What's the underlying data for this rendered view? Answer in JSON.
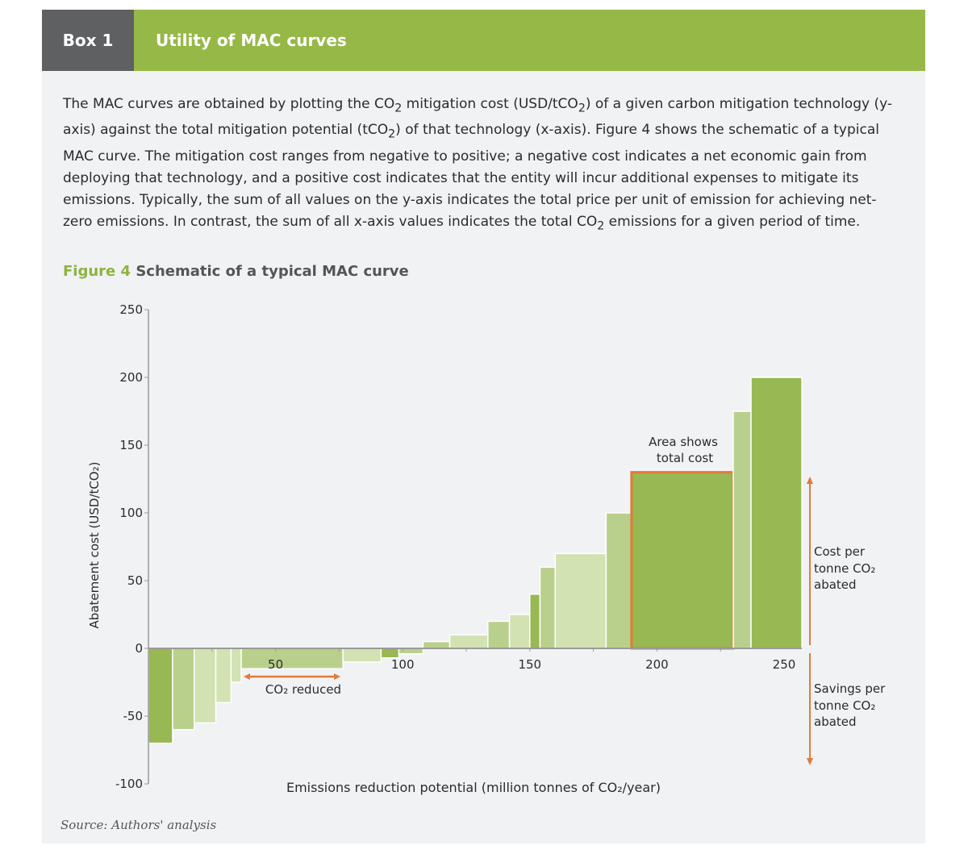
{
  "header": {
    "box_label": "Box 1",
    "title": "Utility of MAC curves"
  },
  "intro": {
    "parts": [
      "The MAC curves are obtained by plotting the CO",
      "2",
      " mitigation cost (USD/tCO",
      "2",
      ") of a given carbon mitigation technology (y-axis) against the total mitigation potential (tCO",
      "2",
      ") of that technology (x-axis). Figure 4 shows the schematic of a typical MAC curve. The mitigation cost ranges from negative to positive; a negative cost indicates a net economic gain from deploying that technology, and a positive cost indicates that the entity will incur additional expenses to mitigate its emissions. Typically, the sum of all values on the y-axis indicates the total price per unit of emission for achieving net-zero emissions. In contrast, the sum of all x-axis values indicates the total CO",
      "2",
      " emissions for a given period of time."
    ]
  },
  "figure": {
    "number": "Figure 4",
    "title": "Schematic of a typical MAC curve"
  },
  "source": "Source: Authors' analysis",
  "colors": {
    "dark": "#97b852",
    "mid": "#b9d08c",
    "light": "#d2e2b2",
    "accent": "#e07b39",
    "header_green": "#96b847",
    "header_gray": "#5f6062"
  },
  "chart_data": {
    "type": "bar",
    "title": "Schematic of a typical MAC curve",
    "xlabel": "Emissions reduction potential (million tonnes of CO₂/year)",
    "ylabel": "Abatement cost (USD/tCO₂)",
    "xlim": [
      0,
      257
    ],
    "ylim": [
      -100,
      250
    ],
    "xticks": [
      50,
      100,
      150,
      200,
      250
    ],
    "yticks": [
      250,
      200,
      150,
      100,
      50,
      0,
      -50,
      -100
    ],
    "bars": [
      {
        "x0": 0,
        "width": 9.5,
        "value": -70,
        "shade": "dark"
      },
      {
        "x0": 9.5,
        "width": 8.5,
        "value": -60,
        "shade": "mid"
      },
      {
        "x0": 18,
        "width": 8.5,
        "value": -55,
        "shade": "light"
      },
      {
        "x0": 26.5,
        "width": 6,
        "value": -40,
        "shade": "light"
      },
      {
        "x0": 32.5,
        "width": 4,
        "value": -25,
        "shade": "light"
      },
      {
        "x0": 36.5,
        "width": 40,
        "value": -15,
        "shade": "mid"
      },
      {
        "x0": 76.5,
        "width": 15,
        "value": -10,
        "shade": "light"
      },
      {
        "x0": 91.5,
        "width": 7,
        "value": -7,
        "shade": "dark"
      },
      {
        "x0": 98.5,
        "width": 9.5,
        "value": -4,
        "shade": "mid"
      },
      {
        "x0": 108,
        "width": 10.5,
        "value": 5,
        "shade": "mid"
      },
      {
        "x0": 118.5,
        "width": 15,
        "value": 10,
        "shade": "light"
      },
      {
        "x0": 133.5,
        "width": 8.5,
        "value": 20,
        "shade": "mid"
      },
      {
        "x0": 142,
        "width": 8,
        "value": 25,
        "shade": "light"
      },
      {
        "x0": 150,
        "width": 4,
        "value": 40,
        "shade": "dark"
      },
      {
        "x0": 154,
        "width": 6,
        "value": 60,
        "shade": "mid"
      },
      {
        "x0": 160,
        "width": 20,
        "value": 70,
        "shade": "light"
      },
      {
        "x0": 180,
        "width": 10,
        "value": 100,
        "shade": "mid"
      },
      {
        "x0": 190,
        "width": 40,
        "value": 130,
        "shade": "dark"
      },
      {
        "x0": 230,
        "width": 7,
        "value": 175,
        "shade": "mid"
      },
      {
        "x0": 237,
        "width": 20,
        "value": 200,
        "shade": "dark"
      }
    ],
    "highlight_bar_index": 17,
    "annotations": {
      "area": [
        "Area shows",
        "total cost"
      ],
      "co2_reduced": "CO₂ reduced",
      "cost_per": [
        "Cost per",
        "tonne CO₂",
        "abated"
      ],
      "savings_per": [
        "Savings per",
        "tonne CO₂",
        "abated"
      ]
    },
    "grid": false
  }
}
